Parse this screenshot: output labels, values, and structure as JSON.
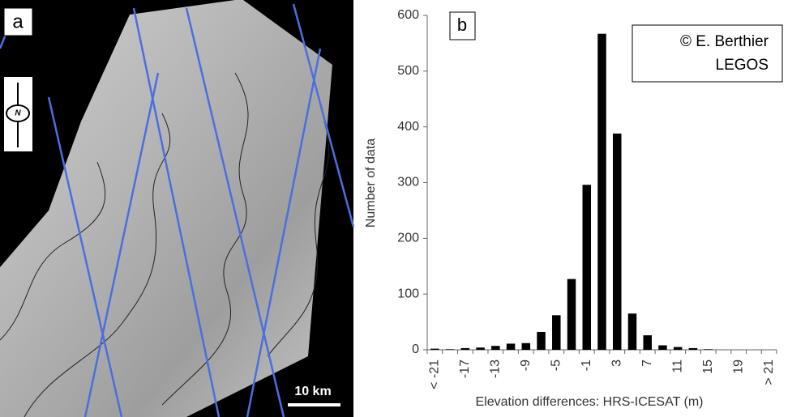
{
  "image_panel": {
    "label": "a",
    "scale_bar": "10 km",
    "north": "N"
  },
  "chart_data": {
    "type": "bar",
    "panel_label": "b",
    "annotation": [
      "© E. Berthier",
      "LEGOS"
    ],
    "xlabel": "Elevation differences: HRS-ICESAT (m)",
    "ylabel": "Number of data",
    "categories": [
      "< -21",
      null,
      "-17",
      null,
      "-13",
      null,
      "-9",
      null,
      "-5",
      null,
      "-1",
      null,
      "3",
      null,
      "7",
      null,
      "11",
      null,
      "15",
      null,
      "19",
      null,
      "> 21"
    ],
    "values": [
      2,
      1,
      3,
      4,
      7,
      11,
      12,
      32,
      62,
      127,
      296,
      567,
      388,
      65,
      26,
      8,
      5,
      3,
      1,
      0,
      0,
      0,
      0
    ],
    "color": "#000000",
    "ylim": [
      0,
      600
    ],
    "yticks": [
      0,
      100,
      200,
      300,
      400,
      500,
      600
    ],
    "grid": false
  }
}
